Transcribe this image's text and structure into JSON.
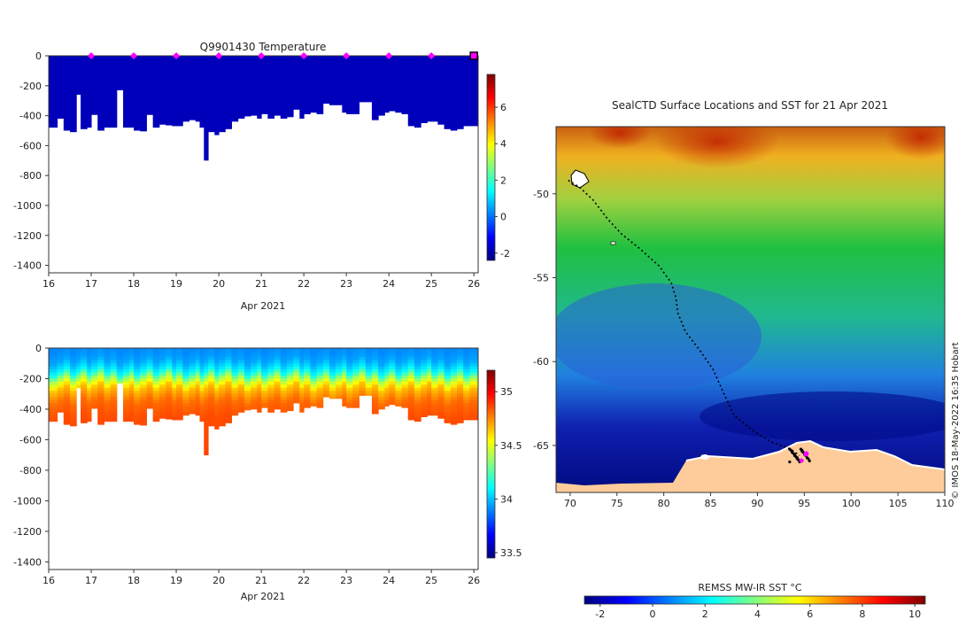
{
  "chart_data": [
    {
      "id": "temp",
      "type": "heatmap",
      "title": "Q9901430  Temperature",
      "xlabel": "Apr 2021",
      "ylabel": "",
      "x_ticks": [
        "16",
        "17",
        "18",
        "19",
        "20",
        "21",
        "22",
        "23",
        "24",
        "25",
        "26"
      ],
      "x_range": [
        16,
        26.1
      ],
      "y_ticks": [
        "0",
        "-200",
        "-400",
        "-600",
        "-800",
        "-1000",
        "-1200",
        "-1400"
      ],
      "y_range": [
        -1450,
        0
      ],
      "colorbar": {
        "ticks": [
          "-2",
          "0",
          "2",
          "4",
          "6"
        ],
        "range": [
          -2.4,
          7.8
        ],
        "cmap": "jet"
      },
      "profile_days": [
        16.0,
        16.2,
        16.35,
        16.5,
        16.65,
        16.75,
        16.9,
        17.0,
        17.15,
        17.3,
        17.45,
        17.6,
        17.75,
        17.9,
        18.0,
        18.15,
        18.3,
        18.45,
        18.6,
        18.75,
        18.9,
        19.0,
        19.15,
        19.3,
        19.45,
        19.55,
        19.65,
        19.75,
        19.9,
        20.0,
        20.15,
        20.3,
        20.45,
        20.6,
        20.75,
        20.9,
        21.0,
        21.15,
        21.3,
        21.45,
        21.6,
        21.75,
        21.9,
        22.0,
        22.15,
        22.3,
        22.45,
        22.6,
        22.75,
        22.9,
        23.0,
        23.15,
        23.3,
        23.45,
        23.6,
        23.75,
        23.9,
        24.0,
        24.15,
        24.3,
        24.45,
        24.6,
        24.75,
        24.9,
        25.0,
        25.15,
        25.3,
        25.45,
        25.6,
        25.75,
        25.9
      ],
      "profile_max_depth": [
        480,
        420,
        500,
        510,
        260,
        490,
        480,
        395,
        500,
        480,
        480,
        230,
        480,
        480,
        500,
        505,
        395,
        480,
        460,
        465,
        470,
        470,
        440,
        430,
        440,
        480,
        700,
        510,
        530,
        510,
        490,
        440,
        420,
        405,
        400,
        420,
        390,
        420,
        400,
        420,
        410,
        360,
        420,
        390,
        380,
        390,
        320,
        330,
        330,
        380,
        390,
        390,
        310,
        310,
        430,
        400,
        380,
        370,
        380,
        390,
        470,
        480,
        450,
        440,
        440,
        460,
        490,
        500,
        490,
        470,
        470
      ],
      "surface_value": -1.8,
      "markers": {
        "days": [
          17,
          18,
          19,
          20,
          21,
          22,
          23,
          24,
          25
        ],
        "color": "#ff00ff"
      }
    },
    {
      "id": "sal",
      "type": "heatmap",
      "title": "",
      "xlabel": "Apr 2021",
      "ylabel": "",
      "x_ticks": [
        "16",
        "17",
        "18",
        "19",
        "20",
        "21",
        "22",
        "23",
        "24",
        "25",
        "26"
      ],
      "x_range": [
        16,
        26.1
      ],
      "y_ticks": [
        "0",
        "-200",
        "-400",
        "-600",
        "-800",
        "-1000",
        "-1200",
        "-1400"
      ],
      "y_range": [
        -1450,
        0
      ],
      "colorbar": {
        "ticks": [
          "33.5",
          "34",
          "34.5",
          "35"
        ],
        "range": [
          33.45,
          35.2
        ],
        "cmap": "jet"
      },
      "depth_profile": [
        [
          0,
          33.9
        ],
        [
          80,
          33.95
        ],
        [
          150,
          34.1
        ],
        [
          200,
          34.4
        ],
        [
          260,
          34.65
        ],
        [
          350,
          34.8
        ],
        [
          450,
          34.85
        ],
        [
          700,
          34.87
        ]
      ]
    },
    {
      "id": "map",
      "type": "heatmap",
      "title": "SealCTD Surface Locations and SST for 21 Apr 2021",
      "x_ticks": [
        "70",
        "75",
        "80",
        "85",
        "90",
        "95",
        "100",
        "105",
        "110"
      ],
      "x_range": [
        68.5,
        110
      ],
      "y_ticks": [
        "-50",
        "-55",
        "-60",
        "-65"
      ],
      "y_range": [
        -67.8,
        -46
      ],
      "colorbar": {
        "label": "REMSS MW-IR SST °C",
        "ticks": [
          "-2",
          "0",
          "2",
          "4",
          "6",
          "8",
          "10"
        ],
        "range": [
          -2.6,
          10.4
        ],
        "cmap": "jet"
      },
      "track": [
        [
          69.8,
          -49.2
        ],
        [
          71,
          -49.6
        ],
        [
          72.5,
          -50.4
        ],
        [
          74,
          -51.5
        ],
        [
          75.5,
          -52.4
        ],
        [
          77.5,
          -53.3
        ],
        [
          79.5,
          -54.3
        ],
        [
          80.8,
          -55.3
        ],
        [
          81.3,
          -56.2
        ],
        [
          81.5,
          -57.1
        ],
        [
          82.3,
          -58.2
        ],
        [
          83.8,
          -59.3
        ],
        [
          85.3,
          -60.5
        ],
        [
          86.4,
          -61.9
        ],
        [
          87.5,
          -63.2
        ],
        [
          89.5,
          -64.1
        ],
        [
          91.5,
          -64.8
        ],
        [
          93.5,
          -65.2
        ],
        [
          94.5,
          -65.6
        ]
      ],
      "land_color": "#fecc9a",
      "ice_color": "#ffffff"
    }
  ],
  "watermark": "© IMOS 18-May-2022 16:35 Hobart"
}
